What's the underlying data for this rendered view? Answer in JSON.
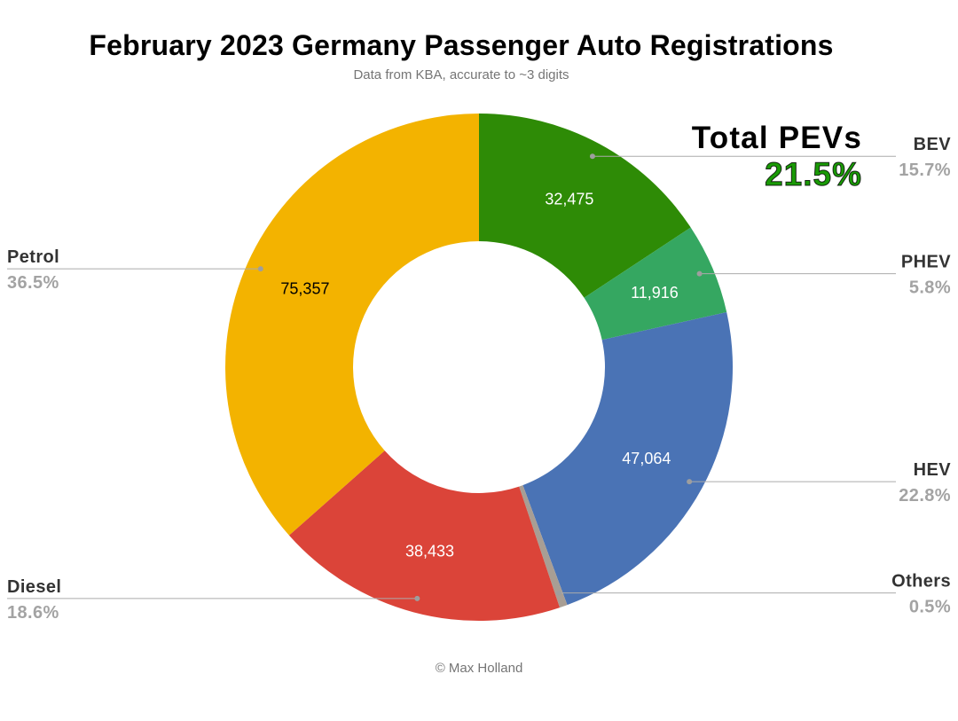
{
  "header": {
    "title": "February 2023 Germany Passenger Auto Registrations",
    "subtitle": "Data from KBA, accurate to ~3 digits"
  },
  "total_callout": {
    "label": "Total PEVs",
    "value": "21.5%",
    "value_color": "#1a9a06"
  },
  "chart_data": {
    "type": "pie",
    "donut": true,
    "title": "February 2023 Germany Passenger Auto Registrations",
    "subtitle": "Data from KBA, accurate to ~3 digits",
    "start_angle_deg": 0,
    "direction": "clockwise",
    "slices": [
      {
        "label": "BEV",
        "value": 32475,
        "value_label": "32,475",
        "pct": 15.7,
        "pct_label": "15.7%",
        "color": "#2e8b06",
        "value_color": "#ffffff",
        "side": "right"
      },
      {
        "label": "PHEV",
        "value": 11916,
        "value_label": "11,916",
        "pct": 5.8,
        "pct_label": "5.8%",
        "color": "#35a761",
        "value_color": "#ffffff",
        "side": "right"
      },
      {
        "label": "HEV",
        "value": 47064,
        "value_label": "47,064",
        "pct": 22.8,
        "pct_label": "22.8%",
        "color": "#4a73b5",
        "value_color": "#ffffff",
        "side": "right"
      },
      {
        "label": "Others",
        "pct": 0.5,
        "pct_label": "0.5%",
        "color": "#a89e94",
        "side": "right"
      },
      {
        "label": "Diesel",
        "value": 38433,
        "value_label": "38,433",
        "pct": 18.6,
        "pct_label": "18.6%",
        "color": "#db4439",
        "value_color": "#ffffff",
        "side": "left"
      },
      {
        "label": "Petrol",
        "value": 75357,
        "value_label": "75,357",
        "pct": 36.5,
        "pct_label": "36.5%",
        "color": "#f3b300",
        "value_color": "#000000",
        "side": "left"
      }
    ]
  },
  "footer": {
    "credit": "© Max Holland"
  }
}
